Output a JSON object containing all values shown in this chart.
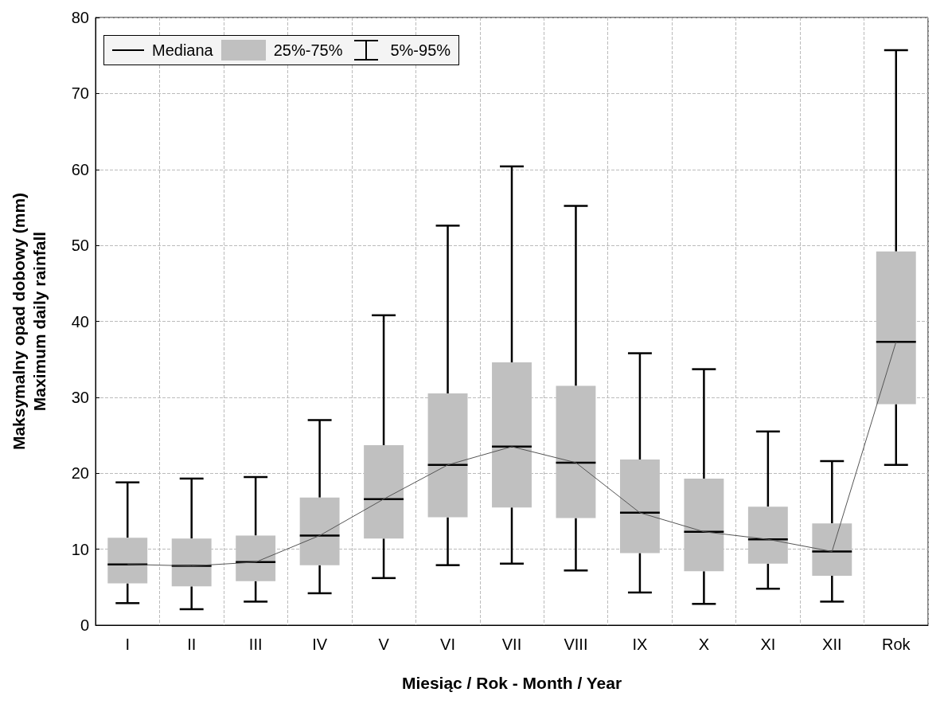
{
  "chart_data": {
    "type": "box",
    "xlabel": "Miesiąc / Rok - Month / Year",
    "ylabel": "Maksymalny opad dobowy (mm)\nMaximum daily rainfall",
    "categories": [
      "I",
      "II",
      "III",
      "IV",
      "V",
      "VI",
      "VII",
      "VIII",
      "IX",
      "X",
      "XI",
      "XII",
      "Rok"
    ],
    "series": [
      {
        "color": "#c0c0c0",
        "boxes": [
          {
            "low": 2.9,
            "q1": 5.5,
            "median": 8.0,
            "q3": 11.5,
            "high": 18.8
          },
          {
            "low": 2.1,
            "q1": 5.1,
            "median": 7.8,
            "q3": 11.4,
            "high": 19.3
          },
          {
            "low": 3.1,
            "q1": 5.8,
            "median": 8.3,
            "q3": 11.8,
            "high": 19.5
          },
          {
            "low": 4.2,
            "q1": 7.9,
            "median": 11.8,
            "q3": 16.8,
            "high": 27.0
          },
          {
            "low": 6.2,
            "q1": 11.4,
            "median": 16.6,
            "q3": 23.7,
            "high": 40.8
          },
          {
            "low": 7.9,
            "q1": 14.2,
            "median": 21.1,
            "q3": 30.5,
            "high": 52.6
          },
          {
            "low": 8.1,
            "q1": 15.5,
            "median": 23.5,
            "q3": 34.6,
            "high": 60.4
          },
          {
            "low": 7.2,
            "q1": 14.1,
            "median": 21.4,
            "q3": 31.5,
            "high": 55.2
          },
          {
            "low": 4.3,
            "q1": 9.5,
            "median": 14.8,
            "q3": 21.8,
            "high": 35.8
          },
          {
            "low": 2.8,
            "q1": 7.1,
            "median": 12.3,
            "q3": 19.3,
            "high": 33.7
          },
          {
            "low": 4.8,
            "q1": 8.1,
            "median": 11.3,
            "q3": 15.6,
            "high": 25.5
          },
          {
            "low": 3.1,
            "q1": 6.5,
            "median": 9.7,
            "q3": 13.4,
            "high": 21.6
          },
          {
            "low": 21.1,
            "q1": 29.1,
            "median": 37.3,
            "q3": 49.2,
            "high": 75.7
          }
        ]
      },
      {
        "type": "line",
        "color": "#555555",
        "values": [
          8.0,
          7.8,
          8.3,
          11.8,
          16.6,
          21.1,
          23.5,
          21.4,
          14.8,
          12.3,
          11.3,
          9.7,
          37.3
        ]
      }
    ],
    "annotations": [
      "Mediana",
      "25%-75%",
      "5%-95%"
    ],
    "marker": "none",
    "line_style": "solid",
    "ylim": [
      0,
      80
    ],
    "yticks": [
      0,
      10,
      20,
      30,
      40,
      50,
      60,
      70,
      80
    ],
    "grid": true
  }
}
